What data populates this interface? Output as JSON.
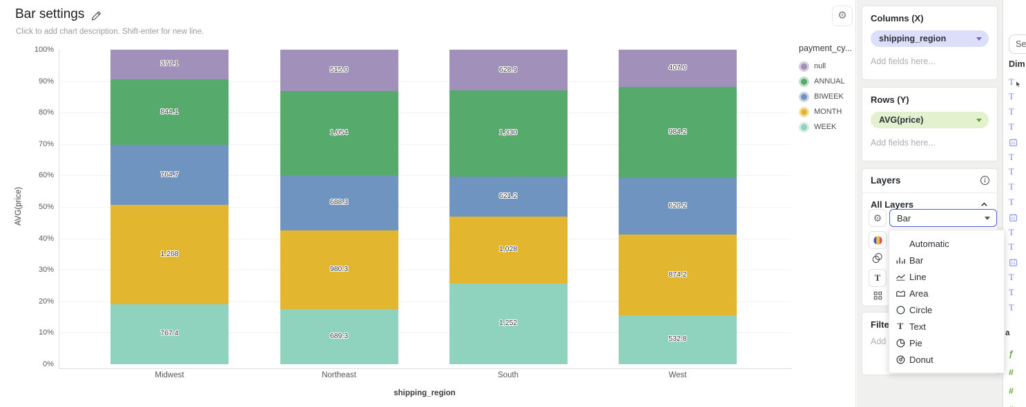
{
  "window": {
    "title": "Bar settings",
    "description_placeholder": "Click to add chart description. Shift-enter for new line."
  },
  "chart_data": {
    "type": "bar",
    "subtype": "stacked-100-percent",
    "title": "Bar settings",
    "xlabel": "shipping_region",
    "ylabel": "AVG(price)",
    "categories": [
      "Midwest",
      "Northeast",
      "South",
      "West"
    ],
    "stack_order_bottom_to_top": [
      "WEEK",
      "MONTH",
      "BIWEEK",
      "ANNUAL",
      "null"
    ],
    "series": [
      {
        "name": "null",
        "color": "#a190b9",
        "ring": "#d5cce0",
        "values": [
          377.1,
          515.0,
          628.9,
          407.0
        ],
        "labels": [
          "377.1",
          "515.0",
          "628.9",
          "407.0"
        ]
      },
      {
        "name": "ANNUAL",
        "color": "#56ab6c",
        "ring": "#bfe1c9",
        "values": [
          844.1,
          1054,
          1330,
          984.2
        ],
        "labels": [
          "844.1",
          "1,054",
          "1,330",
          "984.2"
        ]
      },
      {
        "name": "BIWEEK",
        "color": "#7094c0",
        "ring": "#c7d5e7",
        "values": [
          764.7,
          688.3,
          621.2,
          620.2
        ],
        "labels": [
          "764.7",
          "688.3",
          "621.2",
          "620.2"
        ]
      },
      {
        "name": "MONTH",
        "color": "#e3b62f",
        "ring": "#f3e0a6",
        "values": [
          1268,
          980.3,
          1028,
          874.2
        ],
        "labels": [
          "1,268",
          "980.3",
          "1,028",
          "874.2"
        ]
      },
      {
        "name": "WEEK",
        "color": "#8fd3be",
        "ring": "#d2ece4",
        "values": [
          767.4,
          689.3,
          1252,
          532.8
        ],
        "labels": [
          "767.4",
          "689.3",
          "1,252",
          "532.8"
        ]
      }
    ],
    "y_ticks": [
      "100%",
      "90%",
      "80%",
      "70%",
      "60%",
      "50%",
      "40%",
      "30%",
      "20%",
      "10%",
      "0%"
    ],
    "ylim": [
      "0%",
      "100%"
    ],
    "grid": "horizontal",
    "legend_position": "right",
    "legend_title": "payment_cy..."
  },
  "settings_panel": {
    "columns": {
      "heading": "Columns (X)",
      "pill_label": "shipping_region",
      "pill_bg": "#dcdffa",
      "chev_color": "#6e66d6",
      "placeholder": "Add fields here..."
    },
    "rows": {
      "heading": "Rows (Y)",
      "pill_label": "AVG(price)",
      "pill_bg": "#e4f1cf",
      "chev_color": "#649a38",
      "placeholder": "Add fields here..."
    },
    "layers": {
      "heading": "Layers",
      "all_layers_label": "All Layers",
      "mark_select_value": "Bar"
    },
    "filters": {
      "heading": "Filters",
      "placeholder": "Add fields here..."
    }
  },
  "mark_dropdown": {
    "items": [
      {
        "label": "Automatic",
        "icon": "none"
      },
      {
        "label": "Bar",
        "icon": "bars-icon"
      },
      {
        "label": "Line",
        "icon": "line-icon"
      },
      {
        "label": "Area",
        "icon": "area-icon"
      },
      {
        "label": "Circle",
        "icon": "circle-icon"
      },
      {
        "label": "Text",
        "icon": "text-icon"
      },
      {
        "label": "Pie",
        "icon": "pie-icon"
      },
      {
        "label": "Donut",
        "icon": "donut-icon"
      }
    ]
  },
  "fields_panel": {
    "search_value": "Se",
    "dimensions_label": "Dim",
    "dimension_icon_color": "#7585ea",
    "dimension_fields": [
      "text-drag",
      "text",
      "text",
      "text",
      "calendar",
      "text",
      "text",
      "text",
      "text",
      "calendar",
      "text",
      "text",
      "calendar",
      "text",
      "text",
      "text"
    ],
    "measures_label_fragment": "a",
    "measure_icon_color": "#74a63c",
    "measure_fields": [
      "function",
      "number",
      "number",
      "number"
    ]
  }
}
